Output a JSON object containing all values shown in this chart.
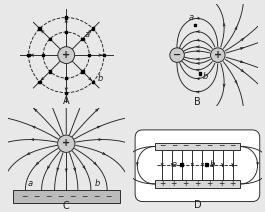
{
  "bg_color": "#e8e8e8",
  "panel_bg": "#ffffff",
  "line_color": "#222222",
  "label_A": "A",
  "label_B": "B",
  "label_C": "C",
  "label_D": "D",
  "charge_plus": "+",
  "charge_minus": "−",
  "figsize": [
    2.65,
    2.12
  ],
  "dpi": 100,
  "lw": 0.65
}
